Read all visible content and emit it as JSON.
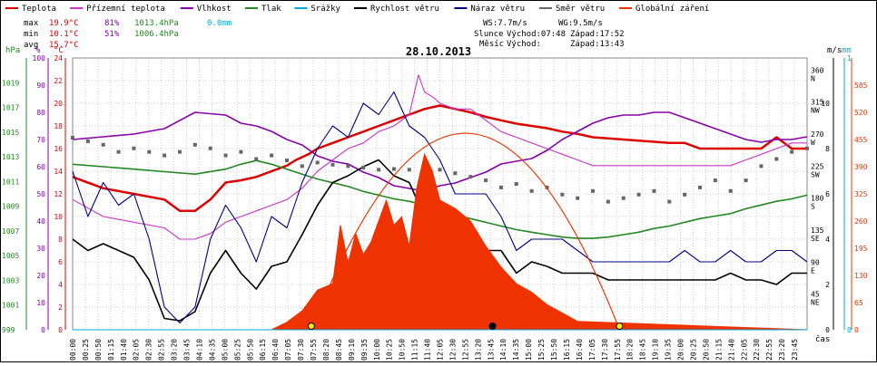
{
  "legend": [
    {
      "label": "Teplota",
      "color": "#dd0000"
    },
    {
      "label": "Přízemní teplota",
      "color": "#cc33cc"
    },
    {
      "label": "Vlhkost",
      "color": "#8800aa"
    },
    {
      "label": "Tlak",
      "color": "#228822"
    },
    {
      "label": "Srážky",
      "color": "#00aadd"
    },
    {
      "label": "Rychlost větru",
      "color": "#000000"
    },
    {
      "label": "Náraz větru",
      "color": "#000088"
    },
    {
      "label": "Směr větru",
      "color": "#666666"
    },
    {
      "label": "Globální záření",
      "color": "#ee3300"
    }
  ],
  "stats": {
    "max": {
      "label": "max",
      "temp": "19.9°C",
      "hum": "81%",
      "press": "1013.4hPa",
      "rain": "0.0mm"
    },
    "min": {
      "label": "min",
      "temp": "10.1°C",
      "hum": "51%",
      "press": "1006.4hPa"
    },
    "avg": {
      "label": "avg",
      "temp": "15.7°C"
    }
  },
  "wind": {
    "ws": "WS:7.7m/s",
    "wg": "WG:9.5m/s"
  },
  "sun": {
    "label": "Slunce",
    "rise": "Východ:07:48",
    "set": "Západ:17:52"
  },
  "moon": {
    "label": "Měsíc",
    "rise": "Východ:",
    "set": "Západ:13:43"
  },
  "chart_data": {
    "type": "line",
    "title": "28.10.2013",
    "xlabel": "čas",
    "x_ticks": [
      "00:00",
      "00:25",
      "00:50",
      "01:15",
      "01:40",
      "02:05",
      "02:30",
      "02:55",
      "03:20",
      "03:45",
      "04:10",
      "04:35",
      "05:00",
      "05:25",
      "05:50",
      "06:15",
      "06:40",
      "07:05",
      "07:30",
      "07:55",
      "08:20",
      "08:45",
      "09:10",
      "09:35",
      "10:00",
      "10:25",
      "10:50",
      "11:15",
      "11:40",
      "12:05",
      "12:30",
      "12:55",
      "13:20",
      "13:45",
      "14:10",
      "14:35",
      "15:00",
      "15:25",
      "15:50",
      "16:15",
      "16:40",
      "17:05",
      "17:30",
      "17:55",
      "18:20",
      "18:45",
      "19:10",
      "19:35",
      "20:00",
      "20:25",
      "20:50",
      "21:15",
      "21:40",
      "22:05",
      "22:30",
      "22:55",
      "23:20",
      "23:45"
    ],
    "axes": {
      "pressure": {
        "label": "hPa",
        "range": [
          999,
          1021
        ],
        "ticks": [
          "999",
          "1001",
          "1003",
          "1005",
          "1007",
          "1009",
          "1011",
          "1013",
          "1015",
          "1017",
          "1019"
        ],
        "color": "#228822"
      },
      "humidity": {
        "label": "%",
        "range": [
          0,
          100
        ],
        "ticks": [
          "0",
          "10",
          "20",
          "30",
          "40",
          "50",
          "60",
          "70",
          "80",
          "90",
          "100"
        ],
        "color": "#8800aa"
      },
      "temperature": {
        "label": "°C",
        "range": [
          0,
          24
        ],
        "ticks": [
          "0",
          "2",
          "4",
          "6",
          "8",
          "10",
          "12",
          "14",
          "16",
          "18",
          "20",
          "22",
          "24"
        ],
        "color": "#dd0000"
      },
      "direction": {
        "ticks": [
          {
            "v": "45",
            "c": "NE"
          },
          {
            "v": "90",
            "c": "E"
          },
          {
            "v": "135",
            "c": "SE"
          },
          {
            "v": "180",
            "c": "S"
          },
          {
            "v": "225",
            "c": "SW"
          },
          {
            "v": "270",
            "c": "W"
          },
          {
            "v": "315",
            "c": "NW"
          },
          {
            "v": "360",
            "c": "N"
          }
        ]
      },
      "wind": {
        "label": "m/s",
        "range": [
          0,
          12
        ],
        "ticks": [
          "0",
          "2",
          "4",
          "6",
          "8",
          "10"
        ]
      },
      "rain": {
        "label": "mm",
        "range": [
          0,
          1
        ],
        "ticks": [
          "0",
          "1"
        ],
        "color": "#00aadd"
      },
      "radiation": {
        "range": [
          0,
          650
        ],
        "ticks": [
          "0",
          "65",
          "130",
          "195",
          "260",
          "325",
          "390",
          "455",
          "520",
          "585"
        ],
        "color": "#ee3300"
      }
    },
    "series": [
      {
        "name": "Teplota",
        "unit": "°C",
        "color": "#dd0000",
        "x": [
          0,
          1,
          2,
          3,
          3.5,
          4,
          4.5,
          5,
          5.5,
          6,
          6.5,
          7,
          7.3,
          7.7,
          8,
          8.5,
          9,
          9.5,
          10,
          10.5,
          11,
          11.5,
          12,
          12.5,
          13,
          13.5,
          14,
          14.5,
          15,
          15.5,
          16,
          16.5,
          17,
          17.5,
          18,
          18.5,
          19,
          19.5,
          20,
          20.5,
          21,
          21.5,
          22,
          22.5,
          23,
          23.5,
          24
        ],
        "y": [
          13.5,
          12.5,
          12,
          11.5,
          10.5,
          10.5,
          11.5,
          13,
          13.2,
          13.5,
          14,
          14.5,
          15,
          15.5,
          16,
          16.5,
          17,
          17.5,
          18,
          18.5,
          19,
          19.5,
          19.8,
          19.5,
          19.2,
          18.8,
          18.5,
          18.2,
          18,
          17.8,
          17.5,
          17.3,
          17,
          16.9,
          16.8,
          16.7,
          16.6,
          16.5,
          16.5,
          16,
          16,
          16,
          16,
          16,
          17,
          16,
          16
        ]
      },
      {
        "name": "Přízemní teplota",
        "unit": "°C",
        "color": "#cc33cc",
        "x": [
          0,
          1,
          2,
          3,
          3.5,
          4,
          4.5,
          5,
          5.5,
          6,
          6.5,
          7,
          7.5,
          8,
          8.5,
          9,
          9.5,
          10,
          10.5,
          11,
          11.3,
          11.5,
          11.8,
          12,
          12.5,
          13,
          13.5,
          14,
          14.5,
          15,
          15.5,
          16,
          16.5,
          17,
          17.5,
          18,
          18.5,
          19,
          19.5,
          20,
          20.5,
          21,
          21.5,
          22,
          22.5,
          23,
          23.5,
          24
        ],
        "y": [
          11.5,
          10,
          9.5,
          9,
          8,
          8,
          8.5,
          9.5,
          10,
          10.5,
          11,
          11.5,
          12.5,
          14,
          15,
          16,
          16.5,
          17.5,
          18,
          19,
          22.5,
          21,
          20.5,
          20,
          19.5,
          19.5,
          18.5,
          17.5,
          17,
          16.5,
          16,
          15.5,
          15,
          14.5,
          14.5,
          14.5,
          14.5,
          14.5,
          14.5,
          14.5,
          14.5,
          14.5,
          14.5,
          15,
          15.5,
          16,
          16.5,
          16.5
        ]
      },
      {
        "name": "Vlhkost",
        "unit": "%",
        "color": "#8800aa",
        "x": [
          0,
          1,
          2,
          3,
          4,
          5,
          5.5,
          6,
          6.5,
          7,
          7.5,
          8,
          8.5,
          9,
          9.5,
          10,
          10.5,
          11,
          11.5,
          12,
          12.5,
          13,
          13.5,
          14,
          14.5,
          15,
          15.5,
          16,
          16.5,
          17,
          17.5,
          18,
          18.5,
          19,
          19.5,
          20,
          20.5,
          21,
          21.5,
          22,
          22.5,
          23,
          23.5,
          24
        ],
        "y": [
          70,
          71,
          72,
          74,
          80,
          79,
          76,
          75,
          73,
          70,
          68,
          64,
          62,
          61,
          58,
          56,
          53,
          52,
          51,
          53,
          54,
          56,
          58,
          61,
          62,
          63,
          66,
          70,
          73,
          76,
          78,
          79,
          79,
          80,
          80,
          78,
          76,
          74,
          72,
          70,
          69,
          70,
          70,
          71
        ]
      },
      {
        "name": "Tlak",
        "unit": "hPa",
        "color": "#228822",
        "x": [
          0,
          1,
          2,
          3,
          4,
          5,
          5.5,
          6,
          6.5,
          7,
          7.5,
          8,
          8.5,
          9,
          9.5,
          10,
          10.5,
          11,
          11.5,
          12,
          12.5,
          13,
          13.5,
          14,
          14.5,
          15,
          15.5,
          16,
          16.5,
          17,
          17.5,
          18,
          18.5,
          19,
          19.5,
          20,
          20.5,
          21,
          21.5,
          22,
          22.5,
          23,
          23.5,
          24
        ],
        "y": [
          1012.4,
          1012.2,
          1012,
          1011.8,
          1011.6,
          1012,
          1012.4,
          1012.7,
          1012.4,
          1012,
          1011.6,
          1011.2,
          1010.9,
          1010.6,
          1010.2,
          1009.9,
          1009.6,
          1009.4,
          1009.1,
          1008.7,
          1008.3,
          1008,
          1007.7,
          1007.4,
          1007.1,
          1006.9,
          1006.7,
          1006.5,
          1006.4,
          1006.4,
          1006.5,
          1006.7,
          1006.9,
          1007.2,
          1007.4,
          1007.7,
          1008,
          1008.2,
          1008.4,
          1008.8,
          1009.1,
          1009.4,
          1009.6,
          1009.9
        ]
      },
      {
        "name": "Rychlost větru",
        "unit": "m/s",
        "color": "#000000",
        "x": [
          0,
          0.5,
          1,
          1.5,
          2,
          2.5,
          3,
          3.5,
          4,
          4.5,
          5,
          5.5,
          6,
          6.5,
          7,
          7.5,
          8,
          8.5,
          9,
          9.5,
          10,
          10.5,
          11,
          11.5,
          12,
          12.5,
          13,
          13.5,
          14,
          14.5,
          15,
          15.5,
          16,
          16.5,
          17,
          17.5,
          18,
          18.5,
          19,
          19.5,
          20,
          20.5,
          21,
          21.5,
          22,
          22.5,
          23,
          23.5,
          24
        ],
        "y": [
          4,
          3.5,
          3.8,
          3.5,
          3.2,
          2.2,
          0.5,
          0.4,
          0.8,
          2.5,
          3.5,
          2.5,
          1.8,
          2.8,
          3,
          4.2,
          5.5,
          6.5,
          6.8,
          7.2,
          7.5,
          6.8,
          6.5,
          5,
          5.2,
          5.2,
          4.5,
          3.5,
          3.5,
          2.5,
          3,
          2.8,
          2.5,
          2.5,
          2.5,
          2.2,
          2.2,
          2.2,
          2.2,
          2.2,
          2.2,
          2.2,
          2.2,
          2.5,
          2.2,
          2.2,
          2,
          2.5,
          2.5
        ]
      },
      {
        "name": "Náraz větru",
        "unit": "m/s",
        "color": "#000088",
        "x": [
          0,
          0.5,
          1,
          1.5,
          2,
          2.5,
          3,
          3.5,
          4,
          4.5,
          5,
          5.5,
          6,
          6.5,
          7,
          7.5,
          8,
          8.5,
          9,
          9.5,
          10,
          10.5,
          11,
          11.5,
          12,
          12.5,
          13,
          13.5,
          14,
          14.5,
          15,
          15.5,
          16,
          16.5,
          17,
          17.5,
          18,
          18.5,
          19,
          19.5,
          20,
          20.5,
          21,
          21.5,
          22,
          22.5,
          23,
          23.5,
          24
        ],
        "y": [
          7,
          5,
          6.5,
          5.5,
          6,
          4,
          1,
          0.3,
          1,
          4,
          5.5,
          4.5,
          3,
          5,
          4.5,
          6.5,
          8,
          9,
          8.5,
          10,
          9.5,
          10.5,
          9,
          8.5,
          7.5,
          6,
          6,
          6,
          5,
          3.5,
          4,
          4,
          4,
          3.5,
          3,
          3,
          3,
          3,
          3,
          3,
          3.5,
          3,
          3,
          3.5,
          3,
          3,
          3.5,
          3.5,
          3
        ]
      },
      {
        "name": "Směr větru",
        "unit": "°",
        "color": "#666666",
        "x": [
          0,
          0.5,
          1,
          1.5,
          2,
          2.5,
          3,
          3.5,
          4,
          4.5,
          5,
          5.5,
          6,
          6.5,
          7,
          7.5,
          8,
          8.5,
          9,
          9.5,
          10,
          10.5,
          11,
          11.5,
          12,
          12.5,
          13,
          13.5,
          14,
          14.5,
          15,
          15.5,
          16,
          16.5,
          17,
          17.5,
          18,
          18.5,
          19,
          19.5,
          20,
          20.5,
          21,
          21.5,
          22,
          22.5,
          23,
          23.5,
          24
        ],
        "y": [
          270,
          265,
          260,
          250,
          255,
          250,
          245,
          250,
          260,
          255,
          245,
          250,
          240,
          245,
          238,
          230,
          235,
          232,
          230,
          228,
          225,
          226,
          225,
          222,
          225,
          220,
          215,
          210,
          200,
          205,
          195,
          200,
          190,
          185,
          195,
          180,
          185,
          190,
          195,
          180,
          190,
          200,
          210,
          195,
          210,
          230,
          240,
          250,
          255
        ]
      },
      {
        "name": "Globální záření",
        "unit": "W/m²",
        "color": "#ee3300",
        "x": [
          0,
          6.5,
          7,
          7.5,
          8,
          8.5,
          8.75,
          9,
          9.25,
          9.5,
          9.75,
          10,
          10.25,
          10.5,
          10.75,
          11,
          11.25,
          11.5,
          11.75,
          12,
          12.5,
          13,
          13.5,
          14,
          14.5,
          15,
          15.5,
          16,
          16.5,
          24
        ],
        "y": [
          0,
          0,
          18,
          45,
          95,
          110,
          250,
          160,
          230,
          180,
          210,
          260,
          310,
          250,
          270,
          200,
          340,
          420,
          380,
          310,
          290,
          260,
          200,
          150,
          110,
          90,
          60,
          40,
          20,
          0
        ]
      },
      {
        "name": "Srážky",
        "unit": "mm",
        "color": "#00aadd",
        "x": [
          0,
          24
        ],
        "y": [
          0,
          0
        ]
      }
    ],
    "astronomy": {
      "sunrise": 7.8,
      "sunset": 17.87,
      "moonset": 13.72
    }
  }
}
